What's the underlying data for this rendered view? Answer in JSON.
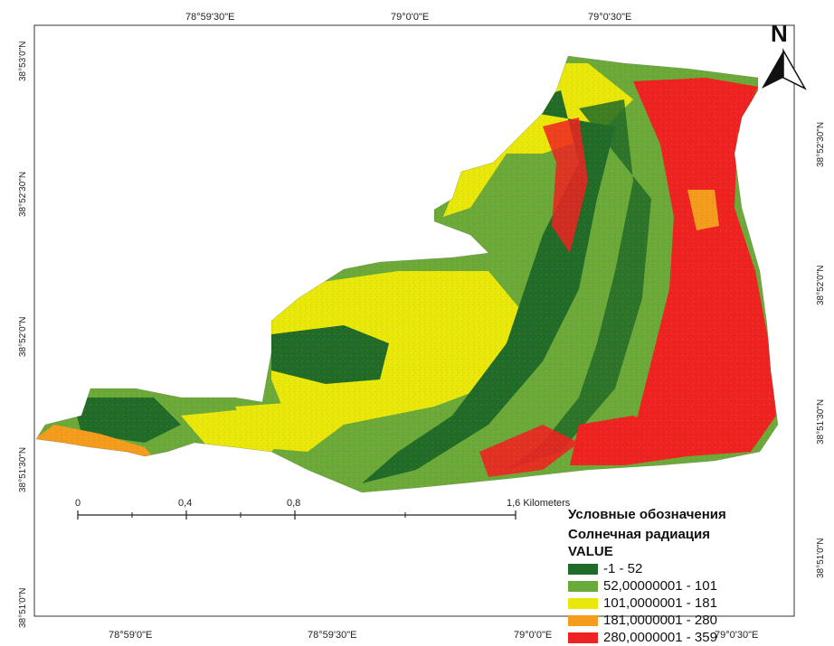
{
  "map": {
    "top_lon_labels": [
      "78°59'30\"E",
      "79°0'0\"E",
      "79°0'30\"E"
    ],
    "bottom_lon_labels": [
      "78°59'0\"E",
      "78°59'30\"E",
      "79°0'0\"E",
      "79°0'30\"E"
    ],
    "left_lat_labels": [
      "38°53'0\"N",
      "38°52'30\"N",
      "38°52'0\"N",
      "38°51'30\"N",
      "38°51'0\"N"
    ],
    "right_lat_labels": [
      "38°52'30\"N",
      "38°52'0\"N",
      "38°51'30\"N",
      "38°51'0\"N"
    ],
    "north_label": "N",
    "scale": {
      "labels": [
        "0",
        "0,4",
        "0,8",
        "1,6 Kilometers"
      ]
    },
    "legend": {
      "title": "Условные обозначения",
      "subtitle": "Солнечная радиация",
      "field": "VALUE",
      "items": [
        {
          "label": "-1 - 52",
          "color": "#1e6b2a"
        },
        {
          "label": "52,00000001 - 101",
          "color": "#6aaa3a"
        },
        {
          "label": "101,0000001 - 181",
          "color": "#e8e80a"
        },
        {
          "label": "181,0000001 - 280",
          "color": "#f39c1e"
        },
        {
          "label": "280,0000001 - 359",
          "color": "#ee2222"
        }
      ]
    }
  }
}
